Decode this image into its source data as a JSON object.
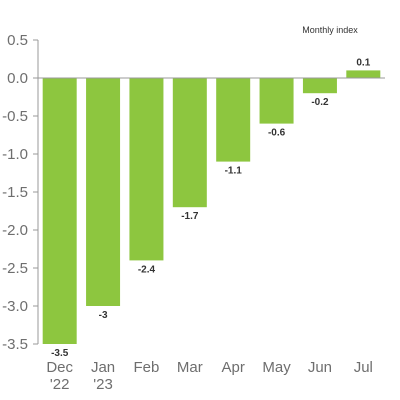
{
  "chart_data": {
    "type": "bar",
    "title": "",
    "legend_text": "Monthly index",
    "legend_placement": "top-right",
    "xlabel": "",
    "ylabel": "",
    "categories": [
      [
        "Dec",
        "'22"
      ],
      [
        "Jan",
        "'23"
      ],
      [
        "Feb"
      ],
      [
        "Mar"
      ],
      [
        "Apr"
      ],
      [
        "May"
      ],
      [
        "Jun"
      ],
      [
        "Jul"
      ]
    ],
    "series": [
      {
        "values": [
          -3.5,
          -3,
          -2.4,
          -1.7,
          -1.1,
          -0.6,
          -0.2,
          0.1
        ]
      }
    ],
    "data_labels": [
      "-3.5",
      "-3",
      "-2.4",
      "-1.7",
      "-1.1",
      "-0.6",
      "-0.2",
      "0.1"
    ],
    "ylim": [
      -3.5,
      0.5
    ],
    "yticks": [
      "0.5",
      "0.0",
      "-0.5",
      "-1.0",
      "-1.5",
      "-2.0",
      "-2.5",
      "-3.0",
      "-3.5"
    ],
    "grid": false,
    "bar_color": "#8dc63f",
    "axis_color": "#999999"
  }
}
